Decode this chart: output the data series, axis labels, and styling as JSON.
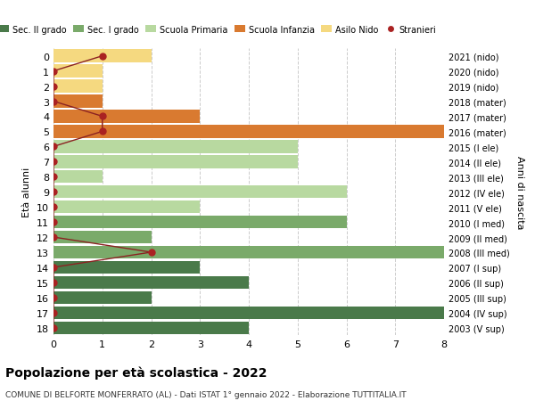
{
  "ages": [
    18,
    17,
    16,
    15,
    14,
    13,
    12,
    11,
    10,
    9,
    8,
    7,
    6,
    5,
    4,
    3,
    2,
    1,
    0
  ],
  "right_labels": [
    "2003 (V sup)",
    "2004 (IV sup)",
    "2005 (III sup)",
    "2006 (II sup)",
    "2007 (I sup)",
    "2008 (III med)",
    "2009 (II med)",
    "2010 (I med)",
    "2011 (V ele)",
    "2012 (IV ele)",
    "2013 (III ele)",
    "2014 (II ele)",
    "2015 (I ele)",
    "2016 (mater)",
    "2017 (mater)",
    "2018 (mater)",
    "2019 (nido)",
    "2020 (nido)",
    "2021 (nido)"
  ],
  "bar_values": [
    4,
    8,
    2,
    4,
    3,
    8,
    2,
    6,
    3,
    6,
    1,
    5,
    5,
    8,
    3,
    1,
    1,
    1,
    2
  ],
  "bar_colors": [
    "#4a7a4a",
    "#4a7a4a",
    "#4a7a4a",
    "#4a7a4a",
    "#4a7a4a",
    "#7aaa6a",
    "#7aaa6a",
    "#7aaa6a",
    "#b8d9a0",
    "#b8d9a0",
    "#b8d9a0",
    "#b8d9a0",
    "#b8d9a0",
    "#d97a30",
    "#d97a30",
    "#d97a30",
    "#f5d980",
    "#f5d980",
    "#f5d980"
  ],
  "stranieri_x": [
    0,
    0,
    0,
    0,
    0,
    2,
    0,
    0,
    0,
    0,
    0,
    0,
    0,
    1,
    1,
    0,
    0,
    0,
    1
  ],
  "legend_labels": [
    "Sec. II grado",
    "Sec. I grado",
    "Scuola Primaria",
    "Scuola Infanzia",
    "Asilo Nido",
    "Stranieri"
  ],
  "legend_colors": [
    "#4a7a4a",
    "#7aaa6a",
    "#b8d9a0",
    "#d97a30",
    "#f5d980",
    "#aa2222"
  ],
  "ylabel": "Età alunni",
  "right_ylabel": "Anni di nascita",
  "title": "Popolazione per età scolastica - 2022",
  "subtitle": "COMUNE DI BELFORTE MONFERRATO (AL) - Dati ISTAT 1° gennaio 2022 - Elaborazione TUTTITALIA.IT",
  "xlim": [
    0,
    8
  ],
  "background_color": "#ffffff",
  "grid_color": "#cccccc"
}
